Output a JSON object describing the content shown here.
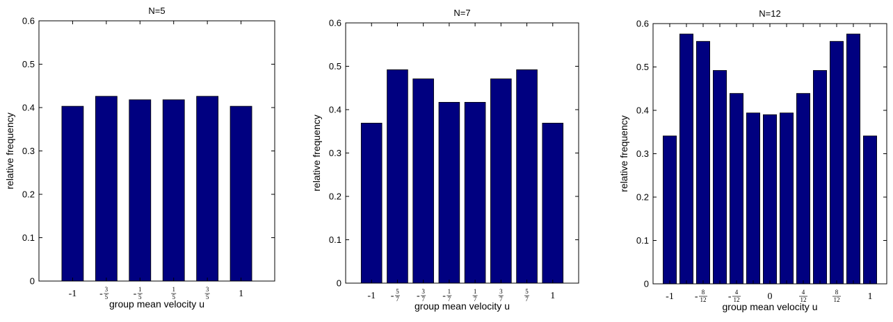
{
  "chart_data": [
    {
      "type": "bar",
      "title": "N=5",
      "xlabel": "group mean velocity u",
      "ylabel": "relative frequency",
      "ylim": [
        0,
        0.6
      ],
      "yticks": [
        0,
        0.1,
        0.2,
        0.3,
        0.4,
        0.5,
        0.6
      ],
      "ytick_labels": [
        "0",
        "0.1",
        "0.2",
        "0.3",
        "0.4",
        "0.5",
        "0.6"
      ],
      "grid": false,
      "bar_color": "#000080",
      "categories": [
        -1,
        -0.6,
        -0.2,
        0.2,
        0.6,
        1
      ],
      "values": [
        0.403,
        0.426,
        0.418,
        0.418,
        0.426,
        0.403
      ],
      "xtick_labels": [
        {
          "sign": "",
          "num": "",
          "den": "",
          "text": "-1"
        },
        {
          "sign": "-",
          "num": "3",
          "den": "5",
          "text": ""
        },
        {
          "sign": "-",
          "num": "1",
          "den": "5",
          "text": ""
        },
        {
          "sign": "",
          "num": "1",
          "den": "5",
          "text": ""
        },
        {
          "sign": "",
          "num": "3",
          "den": "5",
          "text": ""
        },
        {
          "sign": "",
          "num": "",
          "den": "",
          "text": "1"
        }
      ]
    },
    {
      "type": "bar",
      "title": "N=7",
      "xlabel": "group mean velocity u",
      "ylabel": "relative frequency",
      "ylim": [
        0,
        0.6
      ],
      "yticks": [
        0,
        0.1,
        0.2,
        0.3,
        0.4,
        0.5,
        0.6
      ],
      "ytick_labels": [
        "0",
        "0.1",
        "0.2",
        "0.3",
        "0.4",
        "0.5",
        "0.6"
      ],
      "grid": false,
      "bar_color": "#000080",
      "categories": [
        -1,
        -0.714,
        -0.429,
        -0.143,
        0.143,
        0.429,
        0.714,
        1
      ],
      "values": [
        0.369,
        0.492,
        0.471,
        0.417,
        0.417,
        0.471,
        0.492,
        0.369
      ],
      "xtick_labels": [
        {
          "sign": "",
          "num": "",
          "den": "",
          "text": "-1"
        },
        {
          "sign": "-",
          "num": "5",
          "den": "7",
          "text": ""
        },
        {
          "sign": "-",
          "num": "3",
          "den": "7",
          "text": ""
        },
        {
          "sign": "-",
          "num": "1",
          "den": "7",
          "text": ""
        },
        {
          "sign": "",
          "num": "1",
          "den": "7",
          "text": ""
        },
        {
          "sign": "",
          "num": "3",
          "den": "7",
          "text": ""
        },
        {
          "sign": "",
          "num": "5",
          "den": "7",
          "text": ""
        },
        {
          "sign": "",
          "num": "",
          "den": "",
          "text": "1"
        }
      ]
    },
    {
      "type": "bar",
      "title": "N=12",
      "xlabel": "group mean velocity u",
      "ylabel": "relative frequency",
      "ylim": [
        0,
        0.6
      ],
      "yticks": [
        0,
        0.1,
        0.2,
        0.3,
        0.4,
        0.5,
        0.6
      ],
      "ytick_labels": [
        "0",
        "0.1",
        "0.2",
        "0.3",
        "0.4",
        "0.5",
        "0.6"
      ],
      "grid": false,
      "bar_color": "#000080",
      "categories": [
        -1,
        -0.833,
        -0.667,
        -0.5,
        -0.333,
        -0.167,
        0,
        0.167,
        0.333,
        0.5,
        0.667,
        0.833,
        1
      ],
      "values": [
        0.341,
        0.576,
        0.559,
        0.492,
        0.439,
        0.394,
        0.39,
        0.394,
        0.439,
        0.492,
        0.559,
        0.576,
        0.341
      ],
      "xtick_labels": [
        {
          "sign": "",
          "num": "",
          "den": "",
          "text": "-1"
        },
        {
          "sign": "",
          "num": "",
          "den": "",
          "text": ""
        },
        {
          "sign": "-",
          "num": "8",
          "den": "12",
          "text": ""
        },
        {
          "sign": "",
          "num": "",
          "den": "",
          "text": ""
        },
        {
          "sign": "-",
          "num": "4",
          "den": "12",
          "text": ""
        },
        {
          "sign": "",
          "num": "",
          "den": "",
          "text": ""
        },
        {
          "sign": "",
          "num": "",
          "den": "",
          "text": "0"
        },
        {
          "sign": "",
          "num": "",
          "den": "",
          "text": ""
        },
        {
          "sign": "",
          "num": "4",
          "den": "12",
          "text": ""
        },
        {
          "sign": "",
          "num": "",
          "den": "",
          "text": ""
        },
        {
          "sign": "",
          "num": "8",
          "den": "12",
          "text": ""
        },
        {
          "sign": "",
          "num": "",
          "den": "",
          "text": ""
        },
        {
          "sign": "",
          "num": "",
          "den": "",
          "text": "1"
        }
      ]
    }
  ]
}
